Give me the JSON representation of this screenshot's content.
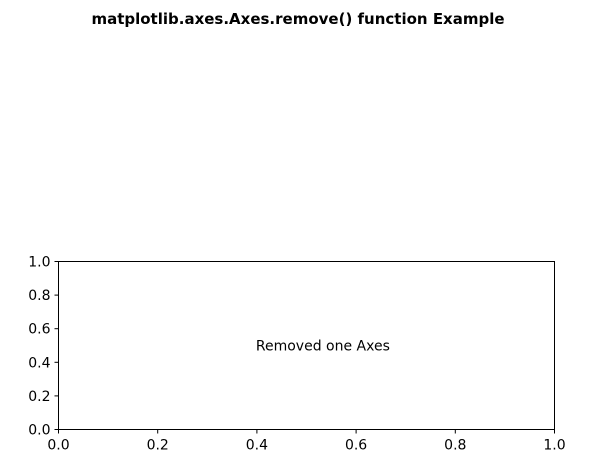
{
  "figure": {
    "suptitle": "matplotlib.axes.Axes.remove() function Example"
  },
  "chart_data": {
    "type": "scatter",
    "title": "",
    "xlabel": "",
    "ylabel": "",
    "xlim": [
      0.0,
      1.0
    ],
    "ylim": [
      0.0,
      1.0
    ],
    "xticks": [
      0.0,
      0.2,
      0.4,
      0.6,
      0.8,
      1.0
    ],
    "yticks": [
      0.0,
      0.2,
      0.4,
      0.6,
      0.8,
      1.0
    ],
    "xtick_labels": [
      "0.0",
      "0.2",
      "0.4",
      "0.6",
      "0.8",
      "1.0"
    ],
    "ytick_labels": [
      "0.0",
      "0.2",
      "0.4",
      "0.6",
      "0.8",
      "1.0"
    ],
    "grid": false,
    "series": [],
    "annotations": [
      {
        "text": "Removed one Axes",
        "x": 0.4,
        "y": 0.5
      }
    ]
  }
}
